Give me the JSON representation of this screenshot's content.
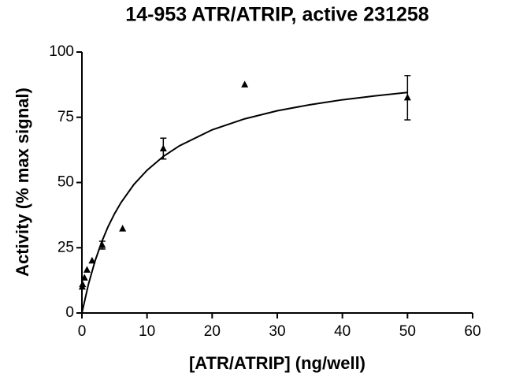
{
  "chart_data": {
    "type": "scatter",
    "title": "14-953 ATR/ATRIP, active  231258",
    "x_label": "[ATR/ATRIP] (ng/well)",
    "y_label": "Activity (% max signal)",
    "xlim": [
      0,
      60
    ],
    "ylim": [
      0,
      100
    ],
    "xticks": [
      0,
      10,
      20,
      30,
      40,
      50,
      60
    ],
    "yticks": [
      0,
      25,
      50,
      75,
      100
    ],
    "series": [
      {
        "type": "scatter",
        "color": "#000000",
        "x": [
          0.05,
          0.1,
          0.39,
          0.78,
          1.56,
          3.125,
          6.25,
          12.5,
          25,
          50
        ],
        "values": [
          10,
          11,
          13.5,
          16.5,
          20,
          26,
          32.3,
          63,
          87.5,
          82.5
        ],
        "errors": [
          null,
          null,
          null,
          null,
          null,
          1.5,
          null,
          4,
          null,
          8.5
        ]
      },
      {
        "type": "line",
        "color": "#000000",
        "x": [
          0,
          1,
          2,
          3,
          4,
          5,
          6,
          8,
          10,
          12.5,
          15,
          20,
          25,
          30,
          35,
          40,
          45,
          50
        ],
        "values": [
          0,
          11,
          19.8,
          27,
          33,
          38,
          42.3,
          49.3,
          54.7,
          60,
          64.1,
          70.2,
          74.4,
          77.5,
          79.8,
          81.7,
          83.2,
          84.5
        ]
      }
    ]
  }
}
